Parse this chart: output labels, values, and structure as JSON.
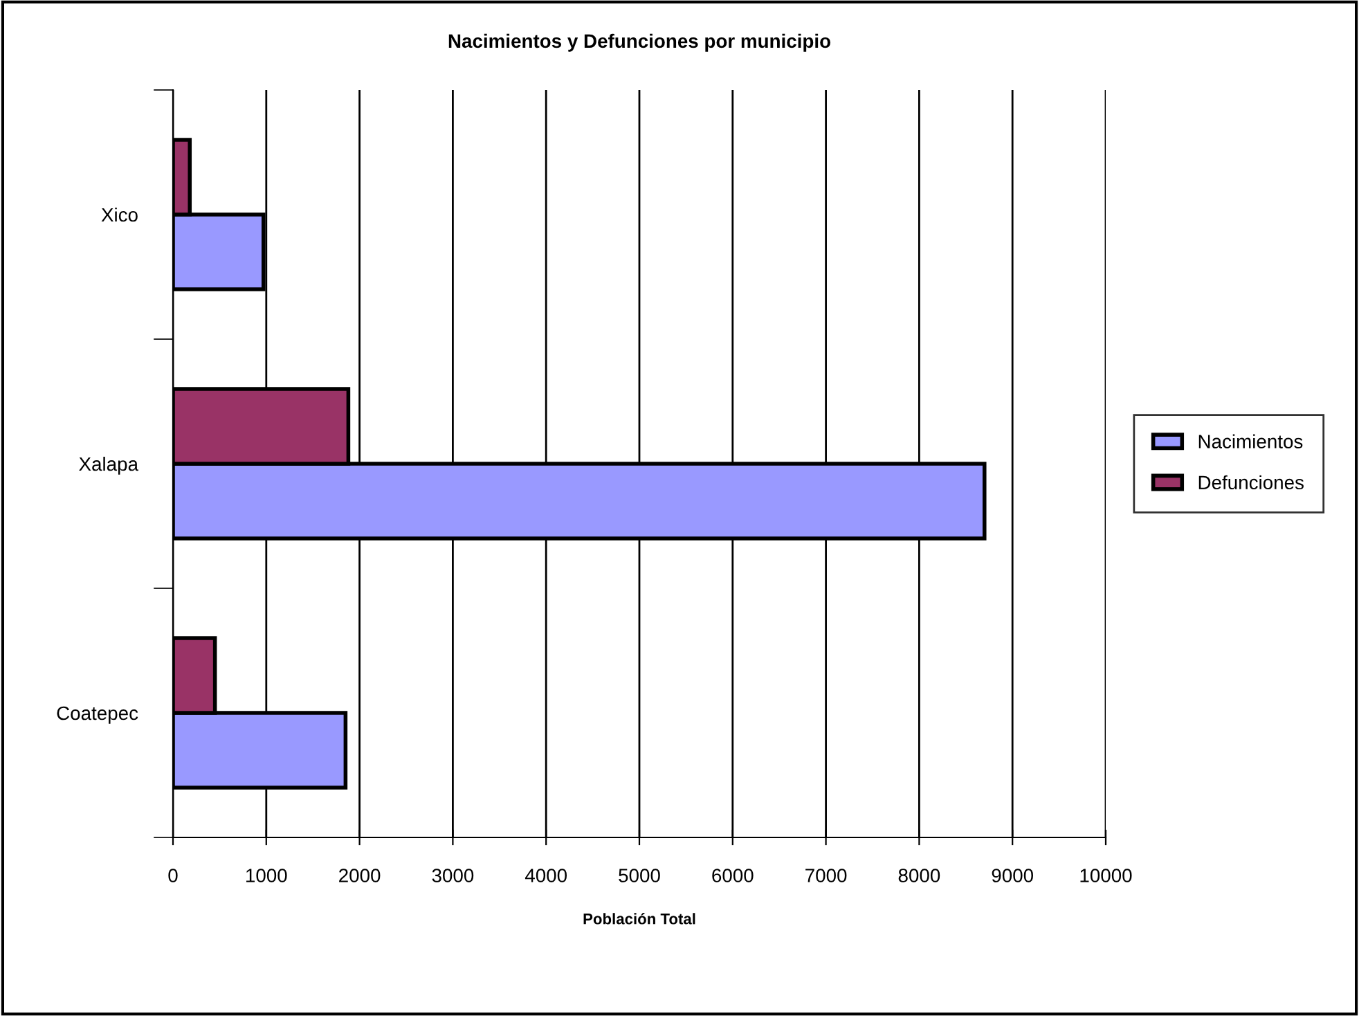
{
  "chart_data": {
    "type": "bar",
    "orientation": "horizontal",
    "title": "Nacimientos y Defunciones por municipio",
    "xlabel": "Población Total",
    "categories": [
      "Xico",
      "Xalapa",
      "Coatepec"
    ],
    "series": [
      {
        "name": "Nacimientos",
        "color": "#9999ff",
        "values": [
          970,
          8700,
          1850
        ]
      },
      {
        "name": "Defunciones",
        "color": "#993366",
        "values": [
          180,
          1880,
          450
        ]
      }
    ],
    "xlim": [
      0,
      10000
    ],
    "xticks": [
      0,
      1000,
      2000,
      3000,
      4000,
      5000,
      6000,
      7000,
      8000,
      9000,
      10000
    ],
    "grid": "x",
    "legend": "right"
  }
}
